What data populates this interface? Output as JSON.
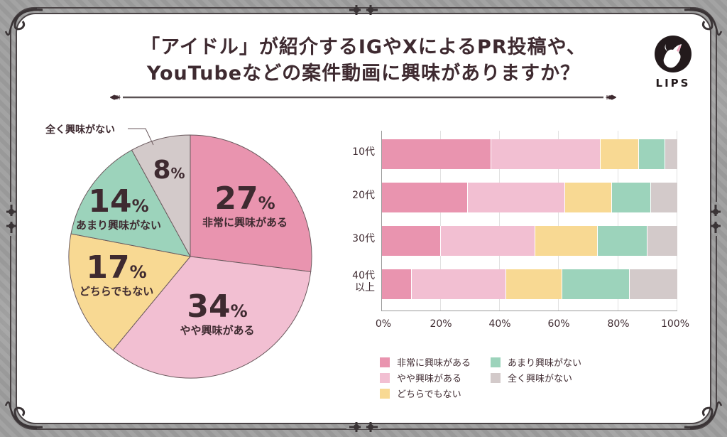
{
  "title": {
    "line1": "「アイドル」が紹介するIGやXによるPR投稿や、",
    "line2": "YouTubeなどの案件動画に興味がありますか？"
  },
  "logo": {
    "text": "LIPS",
    "icon": "deer-icon"
  },
  "colors": {
    "very_interested": "#E994AF",
    "somewhat_interested": "#F2BFD2",
    "neutral": "#F8D993",
    "not_very_interested": "#9CD3BB",
    "not_at_all": "#D3CACA",
    "text": "#3E2A30",
    "frame": "#4A4446"
  },
  "pie": {
    "callout": "全く興味がない",
    "slices": [
      {
        "num": "27",
        "pct": "%",
        "label": "非常に興味がある"
      },
      {
        "num": "34",
        "pct": "%",
        "label": "やや興味がある"
      },
      {
        "num": "17",
        "pct": "%",
        "label": "どちらでもない"
      },
      {
        "num": "14",
        "pct": "%",
        "label": "あまり興味がない"
      },
      {
        "num": "8",
        "pct": "%",
        "label": ""
      }
    ]
  },
  "bar": {
    "rows": [
      {
        "label": "10代",
        "label2": ""
      },
      {
        "label": "20代",
        "label2": ""
      },
      {
        "label": "30代",
        "label2": ""
      },
      {
        "label": "40代",
        "label2": "以上"
      }
    ],
    "ticks": [
      "0%",
      "20%",
      "40%",
      "60%",
      "80%",
      "100%"
    ]
  },
  "legend": [
    {
      "label": "非常に興味がある"
    },
    {
      "label": "やや興味がある"
    },
    {
      "label": "どちらでもない"
    },
    {
      "label": "あまり興味がない"
    },
    {
      "label": "全く興味がない"
    }
  ],
  "chart_data": [
    {
      "type": "pie",
      "title": "「アイドル」が紹介するIGやXによるPR投稿や、YouTubeなどの案件動画に興味がありますか？",
      "categories": [
        "非常に興味がある",
        "やや興味がある",
        "どちらでもない",
        "あまり興味がない",
        "全く興味がない"
      ],
      "values": [
        27,
        34,
        17,
        14,
        8
      ],
      "unit": "%",
      "colors": [
        "#E994AF",
        "#F2BFD2",
        "#F8D993",
        "#9CD3BB",
        "#D3CACA"
      ],
      "start_angle": "12 o'clock, clockwise"
    },
    {
      "type": "bar",
      "orientation": "horizontal",
      "stacked": "100%",
      "categories": [
        "10代",
        "20代",
        "30代",
        "40代以上"
      ],
      "series": [
        {
          "name": "非常に興味がある",
          "values": [
            37,
            29,
            20,
            10
          ]
        },
        {
          "name": "やや興味がある",
          "values": [
            37,
            33,
            32,
            32
          ]
        },
        {
          "name": "どちらでもない",
          "values": [
            13,
            16,
            21,
            19
          ]
        },
        {
          "name": "あまり興味がない",
          "values": [
            9,
            13,
            17,
            23
          ]
        },
        {
          "name": "全く興味がない",
          "values": [
            4,
            9,
            10,
            16
          ]
        }
      ],
      "xlabel": "",
      "ylabel": "",
      "xlim": [
        0,
        100
      ],
      "xticks": [
        "0%",
        "20%",
        "40%",
        "60%",
        "80%",
        "100%"
      ],
      "grid": true,
      "legend_position": "bottom"
    }
  ]
}
